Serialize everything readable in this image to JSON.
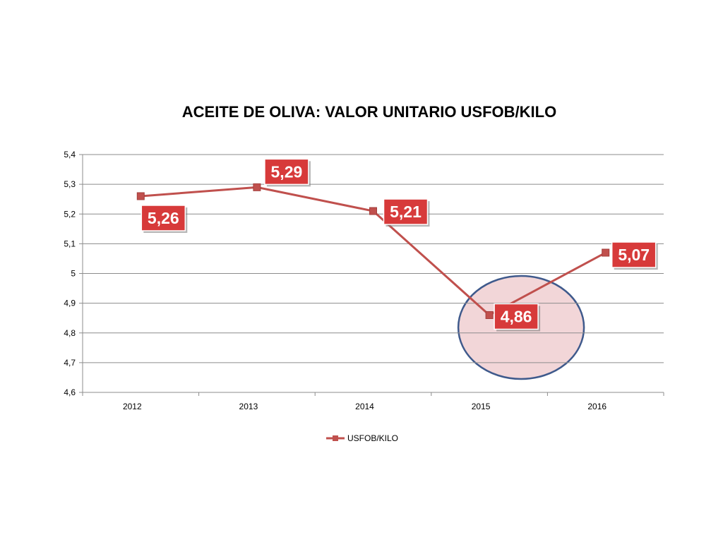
{
  "colors": {
    "series": "#C0504D",
    "marker": "#C0504D",
    "label_bg": "#D73A3A",
    "grid": "#8C8C8C",
    "highlight_fill": "#F2D6D8",
    "highlight_stroke": "#3F5A8C"
  },
  "chart_data": {
    "type": "line",
    "title": "ACEITE DE OLIVA: VALOR UNITARIO USFOB/KILO",
    "categories": [
      "2012",
      "2013",
      "2014",
      "2015",
      "2016"
    ],
    "series": [
      {
        "name": "USFOB/KILO",
        "values": [
          5.26,
          5.29,
          5.21,
          4.86,
          5.07
        ]
      }
    ],
    "data_labels": [
      "5,26",
      "5,29",
      "5,21",
      "4,86",
      "5,07"
    ],
    "y_ticks": [
      "4,6",
      "4,7",
      "4,8",
      "4,9",
      "5",
      "5,1",
      "5,2",
      "5,3",
      "5,4"
    ],
    "ylim": [
      4.6,
      5.4
    ],
    "grid": true,
    "legend_position": "bottom",
    "highlighted_category": "2015"
  }
}
